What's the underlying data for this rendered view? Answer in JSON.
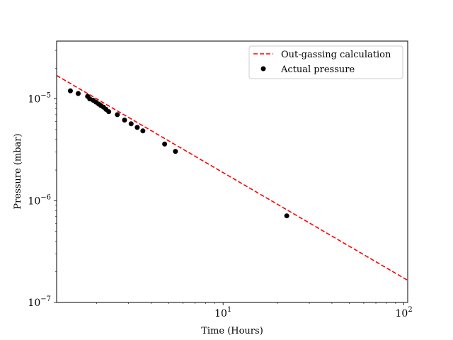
{
  "chart_data": {
    "type": "scatter",
    "xscale": "log",
    "yscale": "log",
    "xlim": [
      1.2,
      105
    ],
    "ylim": [
      1e-07,
      3.7e-05
    ],
    "xlabel": "Time (Hours)",
    "ylabel": "Pressure (mbar)",
    "xticks": [
      {
        "value": 10,
        "base": "10",
        "exp": "1"
      },
      {
        "value": 100,
        "base": "10",
        "exp": "2"
      }
    ],
    "yticks": [
      {
        "value": 1e-07,
        "base": "10",
        "exp": "−7"
      },
      {
        "value": 1e-06,
        "base": "10",
        "exp": "−6"
      },
      {
        "value": 1e-05,
        "base": "10",
        "exp": "−5"
      }
    ],
    "grid": false,
    "legend_position": "upper right",
    "series": [
      {
        "name": "Out-gassing calculation",
        "kind": "line",
        "style": "dashed",
        "color": "#ff0000",
        "x": [
          1.2,
          105
        ],
        "y": [
          1.7e-05,
          1.65e-07
        ]
      },
      {
        "name": "Actual pressure",
        "kind": "scatter",
        "color": "#000000",
        "x": [
          1.43,
          1.58,
          1.78,
          1.83,
          1.91,
          1.98,
          2.05,
          2.11,
          2.18,
          2.25,
          2.33,
          2.6,
          2.85,
          3.1,
          3.35,
          3.6,
          4.75,
          5.45,
          22.5
        ],
        "y": [
          1.2e-05,
          1.13e-05,
          1.06e-05,
          1e-05,
          9.7e-06,
          9.3e-06,
          8.9e-06,
          8.6e-06,
          8.3e-06,
          7.9e-06,
          7.5e-06,
          7e-06,
          6.2e-06,
          5.7e-06,
          5.25e-06,
          4.85e-06,
          3.6e-06,
          3.05e-06,
          7.1e-07
        ]
      }
    ]
  }
}
